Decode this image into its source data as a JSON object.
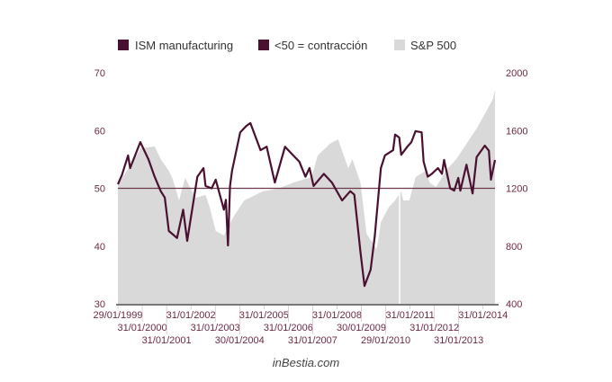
{
  "chart_data": {
    "type": "line",
    "title": "",
    "legend": {
      "placement": "top",
      "entries": [
        {
          "label": "ISM manufacturing",
          "color": "#4a1030"
        },
        {
          "label": "<50 = contracción",
          "color": "#4a1030"
        },
        {
          "label": "S&P 500",
          "color": "#d9d9d9"
        }
      ]
    },
    "x_ticks": [
      "29/01/1999",
      "31/01/2000",
      "31/01/2001",
      "31/01/2002",
      "31/01/2003",
      "30/01/2004",
      "31/01/2005",
      "31/01/2006",
      "31/01/2007",
      "31/01/2008",
      "30/01/2009",
      "29/01/2010",
      "31/01/2011",
      "31/01/2012",
      "31/01/2013",
      "31/01/2014"
    ],
    "y_left": {
      "ticks": [
        "70",
        "60",
        "50",
        "40",
        "30"
      ],
      "range": [
        30,
        70
      ]
    },
    "y_right": {
      "ticks": [
        "2000",
        "1600",
        "1200",
        "800",
        "400"
      ],
      "range": [
        400,
        2000
      ]
    },
    "x_range": [
      "1999-01",
      "2014-06"
    ],
    "threshold": 50,
    "grid": false,
    "series": [
      {
        "name": "ISM manufacturing",
        "axis": "left",
        "type": "line",
        "color": "#4a1030",
        "points": [
          [
            "1999-01",
            50.7
          ],
          [
            "1999-03",
            52.3
          ],
          [
            "1999-06",
            55.7
          ],
          [
            "1999-07",
            53.5
          ],
          [
            "1999-12",
            58.0
          ],
          [
            "2000-04",
            55.0
          ],
          [
            "2000-07",
            52.0
          ],
          [
            "2000-10",
            49.5
          ],
          [
            "2000-12",
            48.4
          ],
          [
            "2001-02",
            42.6
          ],
          [
            "2001-04",
            42.0
          ],
          [
            "2001-06",
            41.4
          ],
          [
            "2001-09",
            46.3
          ],
          [
            "2001-11",
            40.9
          ],
          [
            "2002-04",
            52.0
          ],
          [
            "2002-07",
            53.5
          ],
          [
            "2002-08",
            50.4
          ],
          [
            "2002-11",
            50.0
          ],
          [
            "2003-01",
            51.5
          ],
          [
            "2003-05",
            46.3
          ],
          [
            "2003-06",
            48.0
          ],
          [
            "2003-07",
            40.1
          ],
          [
            "2003-08",
            50.4
          ],
          [
            "2003-09",
            53.0
          ],
          [
            "2004-01",
            59.7
          ],
          [
            "2004-04",
            60.8
          ],
          [
            "2004-06",
            61.3
          ],
          [
            "2004-11",
            56.6
          ],
          [
            "2005-02",
            57.2
          ],
          [
            "2005-06",
            51.0
          ],
          [
            "2005-11",
            57.2
          ],
          [
            "2006-03",
            55.7
          ],
          [
            "2006-06",
            54.6
          ],
          [
            "2006-09",
            52.0
          ],
          [
            "2006-11",
            53.5
          ],
          [
            "2007-01",
            50.4
          ],
          [
            "2007-06",
            52.5
          ],
          [
            "2007-10",
            51.0
          ],
          [
            "2008-03",
            47.9
          ],
          [
            "2008-07",
            49.5
          ],
          [
            "2008-09",
            48.9
          ],
          [
            "2008-12",
            39.0
          ],
          [
            "2009-02",
            33.1
          ],
          [
            "2009-05",
            35.9
          ],
          [
            "2009-07",
            41.7
          ],
          [
            "2009-10",
            53.5
          ],
          [
            "2009-12",
            55.7
          ],
          [
            "2010-04",
            56.6
          ],
          [
            "2010-05",
            59.3
          ],
          [
            "2010-07",
            58.8
          ],
          [
            "2010-08",
            55.8
          ],
          [
            "2010-11",
            57.2
          ],
          [
            "2011-01",
            58.0
          ],
          [
            "2011-03",
            59.9
          ],
          [
            "2011-06",
            59.7
          ],
          [
            "2011-07",
            54.6
          ],
          [
            "2011-09",
            52.0
          ],
          [
            "2011-11",
            52.5
          ],
          [
            "2012-02",
            53.5
          ],
          [
            "2012-04",
            52.5
          ],
          [
            "2012-05",
            54.9
          ],
          [
            "2012-08",
            50.0
          ],
          [
            "2012-10",
            49.6
          ],
          [
            "2012-12",
            51.8
          ],
          [
            "2013-01",
            49.6
          ],
          [
            "2013-04",
            54.1
          ],
          [
            "2013-07",
            49.1
          ],
          [
            "2013-09",
            55.4
          ],
          [
            "2014-01",
            57.4
          ],
          [
            "2014-03",
            56.5
          ],
          [
            "2014-04",
            51.5
          ],
          [
            "2014-06",
            54.9
          ]
        ]
      },
      {
        "name": "S&P 500",
        "axis": "right",
        "type": "area",
        "color": "#d9d9d9",
        "points": [
          [
            "1999-01",
            1228
          ],
          [
            "1999-09",
            1396
          ],
          [
            "1999-12",
            1477
          ],
          [
            "2000-07",
            1490
          ],
          [
            "2000-10",
            1402
          ],
          [
            "2001-02",
            1321
          ],
          [
            "2001-04",
            1259
          ],
          [
            "2001-07",
            1116
          ],
          [
            "2001-10",
            1272
          ],
          [
            "2002-03",
            1134
          ],
          [
            "2002-08",
            1153
          ],
          [
            "2002-10",
            1072
          ],
          [
            "2003-01",
            904
          ],
          [
            "2003-05",
            873
          ],
          [
            "2003-07",
            929
          ],
          [
            "2003-10",
            1010
          ],
          [
            "2004-03",
            1116
          ],
          [
            "2004-12",
            1178
          ],
          [
            "2005-08",
            1200
          ],
          [
            "2006-03",
            1240
          ],
          [
            "2006-12",
            1278
          ],
          [
            "2007-03",
            1427
          ],
          [
            "2007-09",
            1508
          ],
          [
            "2008-01",
            1539
          ],
          [
            "2008-06",
            1340
          ],
          [
            "2008-08",
            1402
          ],
          [
            "2008-12",
            1240
          ],
          [
            "2009-03",
            886
          ],
          [
            "2009-05",
            842
          ],
          [
            "2009-08",
            780
          ],
          [
            "2009-10",
            966
          ],
          [
            "2010-02",
            1072
          ],
          [
            "2010-05",
            1116
          ],
          [
            "2010-08",
            1178
          ],
          [
            "2010-09",
            1116
          ],
          [
            "2010-12",
            1116
          ],
          [
            "2011-03",
            1278
          ],
          [
            "2011-08",
            1321
          ],
          [
            "2011-10",
            1240
          ],
          [
            "2012-01",
            1209
          ],
          [
            "2012-07",
            1340
          ],
          [
            "2012-11",
            1402
          ],
          [
            "2013-04",
            1508
          ],
          [
            "2013-09",
            1614
          ],
          [
            "2014-01",
            1714
          ],
          [
            "2014-05",
            1819
          ],
          [
            "2014-06",
            1882
          ]
        ]
      }
    ]
  },
  "footer": "inBestia.com"
}
